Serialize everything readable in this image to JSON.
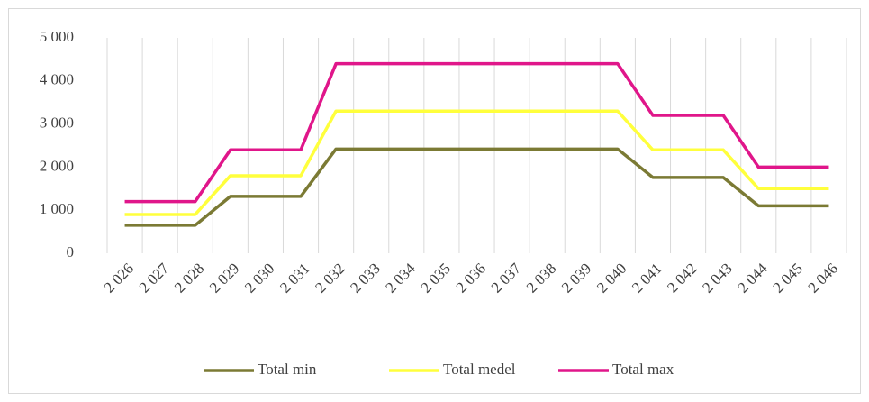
{
  "chart_data": {
    "type": "line",
    "categories": [
      "2 026",
      "2 027",
      "2 028",
      "2 029",
      "2 030",
      "2 031",
      "2 032",
      "2 033",
      "2 034",
      "2 035",
      "2 036",
      "2 037",
      "2 038",
      "2 039",
      "2 040",
      "2 041",
      "2 042",
      "2 043",
      "2 044",
      "2 045",
      "2 046"
    ],
    "series": [
      {
        "name": "Total min",
        "color": "#7b7a34",
        "values": [
          650,
          650,
          650,
          1320,
          1320,
          1320,
          2420,
          2420,
          2420,
          2420,
          2420,
          2420,
          2420,
          2420,
          2420,
          1760,
          1760,
          1760,
          1100,
          1100,
          1100
        ]
      },
      {
        "name": "Total medel",
        "color": "#ffff3c",
        "values": [
          900,
          900,
          900,
          1800,
          1800,
          1800,
          3300,
          3300,
          3300,
          3300,
          3300,
          3300,
          3300,
          3300,
          3300,
          2400,
          2400,
          2400,
          1500,
          1500,
          1500
        ]
      },
      {
        "name": "Total max",
        "color": "#e0168a",
        "values": [
          1200,
          1200,
          1200,
          2400,
          2400,
          2400,
          4400,
          4400,
          4400,
          4400,
          4400,
          4400,
          4400,
          4400,
          4400,
          3200,
          3200,
          3200,
          2000,
          2000,
          2000
        ]
      }
    ],
    "ylim": [
      0,
      5000
    ],
    "yticks": [
      0,
      {
        "value": 1000,
        "label": "1 000"
      },
      {
        "value": 2000,
        "label": "2 000"
      },
      {
        "value": 3000,
        "label": "3 000"
      },
      {
        "value": 4000,
        "label": "4 000"
      },
      {
        "value": 5000,
        "label": "5 000"
      }
    ],
    "grid": true,
    "legend": "bottom"
  }
}
